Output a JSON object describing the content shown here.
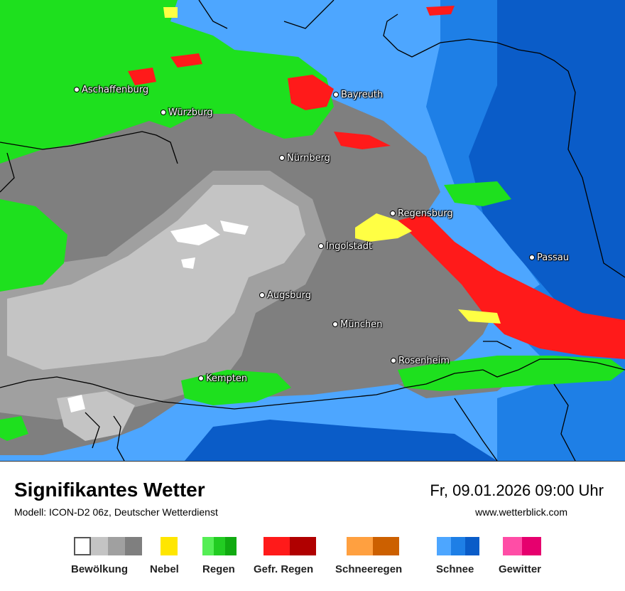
{
  "map": {
    "colors": {
      "snow_light": "#4da6ff",
      "snow_mid": "#1e7fe6",
      "snow_dark": "#0a5cc8",
      "cloud_dark": "#7f7f7f",
      "cloud_mid": "#a0a0a0",
      "cloud_light": "#c4c4c4",
      "clear": "#ffffff",
      "rain": "#1ee01e",
      "freezing_rain": "#ff1a1a",
      "fog": "#ffff44",
      "border": "#000000"
    },
    "cities": [
      {
        "name": "Aschaffenburg"
      },
      {
        "name": "Würzburg"
      },
      {
        "name": "Bayreuth"
      },
      {
        "name": "Nürnberg"
      },
      {
        "name": "Regensburg"
      },
      {
        "name": "Ingolstadt"
      },
      {
        "name": "Passau"
      },
      {
        "name": "Augsburg"
      },
      {
        "name": "München"
      },
      {
        "name": "Rosenheim"
      },
      {
        "name": "Kempten"
      }
    ]
  },
  "footer": {
    "title": "Signifikantes Wetter",
    "model": "Modell: ICON-D2 06z, Deutscher Wetterdienst",
    "datetime": "Fr, 09.01.2026 09:00 Uhr",
    "website": "www.wetterblick.com"
  },
  "legend": [
    {
      "label": "Bewölkung",
      "colors": [
        "#ffffff",
        "#c4c4c4",
        "#a0a0a0",
        "#7f7f7f"
      ]
    },
    {
      "label": "Nebel",
      "colors": [
        "#ffe600"
      ]
    },
    {
      "label": "Regen",
      "colors": [
        "#55ee55",
        "#22cc22",
        "#11aa11"
      ]
    },
    {
      "label": "Gefr. Regen",
      "colors": [
        "#ff1a1a",
        "#b00000"
      ]
    },
    {
      "label": "Schneeregen",
      "colors": [
        "#ffa040",
        "#cc6000"
      ]
    },
    {
      "label": "Schnee",
      "colors": [
        "#4da6ff",
        "#1e7fe6",
        "#0a5cc8"
      ]
    },
    {
      "label": "Gewitter",
      "colors": [
        "#ff4da6",
        "#e6006e"
      ]
    }
  ]
}
